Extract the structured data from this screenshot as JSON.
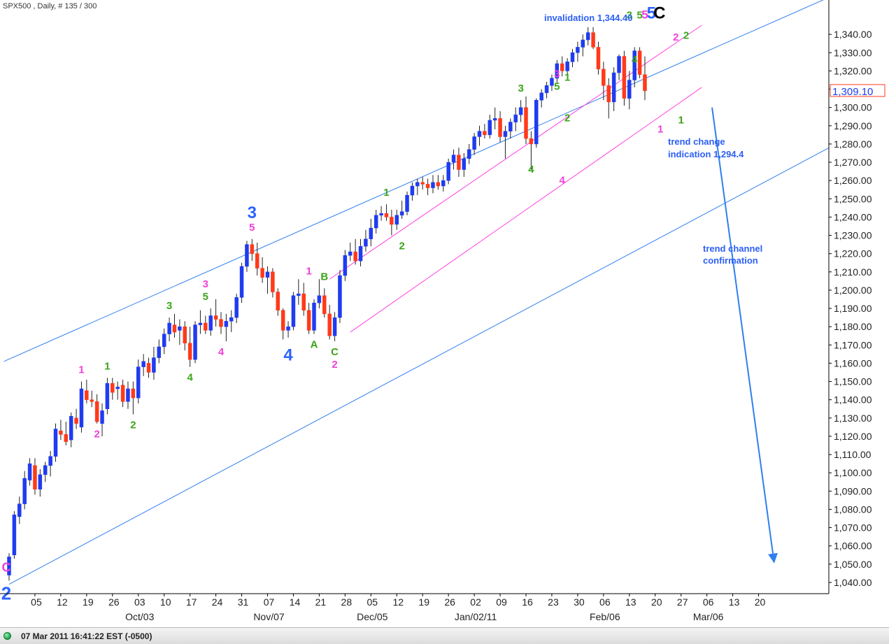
{
  "chart_header": "SPX500 , Daily, # 135 / 300",
  "status_bar": {
    "timestamp": "07 Mar 2011 16:41:22 EST (-0500)"
  },
  "colors": {
    "up": "#1f3cf0",
    "down": "#ff3a1a",
    "blue_line": "#2f7ff0",
    "pink_line": "#ff40e0",
    "green_label": "#3aa518",
    "pink_label": "#f040d8",
    "blue_label": "#2c63ff"
  },
  "chart_data": {
    "type": "candlestick",
    "symbol": "SPX500",
    "timeframe": "Daily",
    "ylim": [
      1035,
      1355
    ],
    "yticks": [
      1040,
      1050,
      1060,
      1070,
      1080,
      1090,
      1100,
      1110,
      1120,
      1130,
      1140,
      1150,
      1160,
      1170,
      1180,
      1190,
      1200,
      1210,
      1220,
      1230,
      1240,
      1250,
      1260,
      1270,
      1280,
      1290,
      1300,
      1310,
      1320,
      1330,
      1340
    ],
    "ytick_labels": [
      "1,040.00",
      "1,050.00",
      "1,060.00",
      "1,070.00",
      "1,080.00",
      "1,090.00",
      "1,100.00",
      "1,110.00",
      "1,120.00",
      "1,130.00",
      "1,140.00",
      "1,150.00",
      "1,160.00",
      "1,170.00",
      "1,180.00",
      "1,190.00",
      "1,200.00",
      "1,210.00",
      "1,220.00",
      "1,230.00",
      "1,240.00",
      "1,250.00",
      "1,260.00",
      "1,270.00",
      "1,280.00",
      "1,290.00",
      "1,300.00",
      "1,310.00",
      "1,320.00",
      "1,330.00",
      "1,340.00"
    ],
    "current_price_label": "1,309.10",
    "current_price": 1309.1,
    "x_day_ticks": [
      {
        "i": 5,
        "label": "05"
      },
      {
        "i": 10,
        "label": "12"
      },
      {
        "i": 15,
        "label": "19"
      },
      {
        "i": 20,
        "label": "26"
      },
      {
        "i": 25,
        "label": "03"
      },
      {
        "i": 30,
        "label": "10"
      },
      {
        "i": 35,
        "label": "17"
      },
      {
        "i": 40,
        "label": "24"
      },
      {
        "i": 45,
        "label": "31"
      },
      {
        "i": 50,
        "label": "07"
      },
      {
        "i": 55,
        "label": "14"
      },
      {
        "i": 60,
        "label": "21"
      },
      {
        "i": 65,
        "label": "28"
      },
      {
        "i": 70,
        "label": "05"
      },
      {
        "i": 75,
        "label": "12"
      },
      {
        "i": 80,
        "label": "19"
      },
      {
        "i": 85,
        "label": "26"
      },
      {
        "i": 90,
        "label": "02"
      },
      {
        "i": 95,
        "label": "09"
      },
      {
        "i": 100,
        "label": "16"
      },
      {
        "i": 105,
        "label": "23"
      },
      {
        "i": 110,
        "label": "30"
      },
      {
        "i": 115,
        "label": "06"
      },
      {
        "i": 120,
        "label": "13"
      },
      {
        "i": 125,
        "label": "20"
      },
      {
        "i": 130,
        "label": "27"
      },
      {
        "i": 135,
        "label": "06"
      },
      {
        "i": 140,
        "label": "13"
      },
      {
        "i": 145,
        "label": "20"
      }
    ],
    "x_month_ticks": [
      {
        "i": 25,
        "label": "Oct/03"
      },
      {
        "i": 50,
        "label": "Nov/07"
      },
      {
        "i": 70,
        "label": "Dec/05"
      },
      {
        "i": 90,
        "label": "Jan/02/11"
      },
      {
        "i": 115,
        "label": "Feb/06"
      },
      {
        "i": 135,
        "label": "Mar/06"
      }
    ],
    "ohlc": [
      [
        1044,
        1056,
        1041,
        1054
      ],
      [
        1055,
        1079,
        1053,
        1077
      ],
      [
        1076,
        1087,
        1072,
        1083
      ],
      [
        1083,
        1101,
        1080,
        1097
      ],
      [
        1096,
        1108,
        1093,
        1105
      ],
      [
        1104,
        1108,
        1088,
        1091
      ],
      [
        1091,
        1102,
        1087,
        1099
      ],
      [
        1099,
        1106,
        1095,
        1104
      ],
      [
        1104,
        1112,
        1098,
        1109
      ],
      [
        1109,
        1127,
        1106,
        1124
      ],
      [
        1123,
        1129,
        1118,
        1121
      ],
      [
        1121,
        1128,
        1115,
        1117
      ],
      [
        1118,
        1133,
        1114,
        1131
      ],
      [
        1130,
        1135,
        1124,
        1127
      ],
      [
        1125,
        1150,
        1122,
        1146
      ],
      [
        1145,
        1151,
        1138,
        1140
      ],
      [
        1140,
        1145,
        1136,
        1139
      ],
      [
        1139,
        1143,
        1127,
        1128
      ],
      [
        1127,
        1138,
        1120,
        1134
      ],
      [
        1135,
        1152,
        1132,
        1149
      ],
      [
        1149,
        1152,
        1140,
        1144
      ],
      [
        1146,
        1150,
        1140,
        1147
      ],
      [
        1148,
        1151,
        1136,
        1139
      ],
      [
        1139,
        1150,
        1135,
        1146
      ],
      [
        1146,
        1150,
        1132,
        1141
      ],
      [
        1141,
        1162,
        1138,
        1158
      ],
      [
        1158,
        1165,
        1153,
        1161
      ],
      [
        1160,
        1163,
        1152,
        1155
      ],
      [
        1155,
        1169,
        1151,
        1163
      ],
      [
        1163,
        1173,
        1160,
        1169
      ],
      [
        1169,
        1179,
        1165,
        1176
      ],
      [
        1176,
        1185,
        1172,
        1182
      ],
      [
        1181,
        1187,
        1174,
        1177
      ],
      [
        1178,
        1184,
        1170,
        1180
      ],
      [
        1180,
        1183,
        1167,
        1171
      ],
      [
        1171,
        1180,
        1158,
        1162
      ],
      [
        1162,
        1183,
        1160,
        1181
      ],
      [
        1181,
        1189,
        1176,
        1182
      ],
      [
        1182,
        1186,
        1176,
        1178
      ],
      [
        1178,
        1190,
        1175,
        1186
      ],
      [
        1186,
        1195,
        1180,
        1184
      ],
      [
        1184,
        1188,
        1176,
        1180
      ],
      [
        1180,
        1187,
        1172,
        1183
      ],
      [
        1183,
        1189,
        1177,
        1185
      ],
      [
        1185,
        1198,
        1182,
        1196
      ],
      [
        1196,
        1215,
        1193,
        1213
      ],
      [
        1213,
        1227,
        1210,
        1225
      ],
      [
        1225,
        1228,
        1216,
        1220
      ],
      [
        1220,
        1226,
        1208,
        1212
      ],
      [
        1212,
        1218,
        1204,
        1207
      ],
      [
        1207,
        1213,
        1198,
        1210
      ],
      [
        1210,
        1212,
        1196,
        1199
      ],
      [
        1199,
        1201,
        1186,
        1189
      ],
      [
        1189,
        1190,
        1173,
        1178
      ],
      [
        1178,
        1183,
        1174,
        1180
      ],
      [
        1180,
        1199,
        1178,
        1197
      ],
      [
        1197,
        1206,
        1192,
        1198
      ],
      [
        1198,
        1204,
        1186,
        1189
      ],
      [
        1189,
        1193,
        1176,
        1178
      ],
      [
        1178,
        1195,
        1176,
        1193
      ],
      [
        1193,
        1206,
        1190,
        1197
      ],
      [
        1197,
        1201,
        1185,
        1187
      ],
      [
        1187,
        1192,
        1173,
        1175
      ],
      [
        1175,
        1188,
        1172,
        1185
      ],
      [
        1185,
        1211,
        1182,
        1208
      ],
      [
        1208,
        1222,
        1205,
        1219
      ],
      [
        1219,
        1226,
        1216,
        1221
      ],
      [
        1221,
        1228,
        1214,
        1216
      ],
      [
        1216,
        1228,
        1213,
        1224
      ],
      [
        1224,
        1233,
        1221,
        1228
      ],
      [
        1228,
        1239,
        1224,
        1234
      ],
      [
        1234,
        1244,
        1231,
        1241
      ],
      [
        1241,
        1246,
        1238,
        1242
      ],
      [
        1242,
        1247,
        1238,
        1240
      ],
      [
        1240,
        1244,
        1230,
        1236
      ],
      [
        1236,
        1244,
        1233,
        1241
      ],
      [
        1241,
        1249,
        1239,
        1243
      ],
      [
        1243,
        1254,
        1241,
        1252
      ],
      [
        1252,
        1259,
        1249,
        1257
      ],
      [
        1257,
        1261,
        1252,
        1259
      ],
      [
        1259,
        1262,
        1255,
        1258
      ],
      [
        1258,
        1261,
        1252,
        1256
      ],
      [
        1256,
        1263,
        1253,
        1259
      ],
      [
        1259,
        1263,
        1255,
        1257
      ],
      [
        1257,
        1263,
        1254,
        1260
      ],
      [
        1260,
        1272,
        1258,
        1270
      ],
      [
        1270,
        1277,
        1266,
        1274
      ],
      [
        1274,
        1278,
        1262,
        1266
      ],
      [
        1266,
        1275,
        1262,
        1272
      ],
      [
        1272,
        1280,
        1269,
        1277
      ],
      [
        1277,
        1286,
        1274,
        1284
      ],
      [
        1284,
        1290,
        1279,
        1287
      ],
      [
        1287,
        1291,
        1283,
        1285
      ],
      [
        1285,
        1296,
        1283,
        1293
      ],
      [
        1293,
        1300,
        1288,
        1294
      ],
      [
        1294,
        1298,
        1281,
        1284
      ],
      [
        1284,
        1290,
        1272,
        1287
      ],
      [
        1287,
        1294,
        1283,
        1292
      ],
      [
        1292,
        1300,
        1287,
        1296
      ],
      [
        1296,
        1304,
        1292,
        1300
      ],
      [
        1300,
        1306,
        1280,
        1283
      ],
      [
        1283,
        1287,
        1266,
        1280
      ],
      [
        1280,
        1305,
        1278,
        1304
      ],
      [
        1304,
        1310,
        1300,
        1308
      ],
      [
        1308,
        1314,
        1305,
        1312
      ],
      [
        1312,
        1318,
        1309,
        1316
      ],
      [
        1316,
        1326,
        1313,
        1324
      ],
      [
        1324,
        1328,
        1317,
        1320
      ],
      [
        1320,
        1327,
        1316,
        1325
      ],
      [
        1325,
        1332,
        1322,
        1330
      ],
      [
        1330,
        1336,
        1325,
        1333
      ],
      [
        1333,
        1340,
        1328,
        1337
      ],
      [
        1337,
        1344,
        1334,
        1341
      ],
      [
        1341,
        1344,
        1332,
        1333
      ],
      [
        1333,
        1336,
        1318,
        1321
      ],
      [
        1321,
        1325,
        1304,
        1312
      ],
      [
        1312,
        1316,
        1294,
        1303
      ],
      [
        1303,
        1322,
        1298,
        1319
      ],
      [
        1319,
        1329,
        1315,
        1328
      ],
      [
        1328,
        1331,
        1301,
        1305
      ],
      [
        1305,
        1320,
        1299,
        1315
      ],
      [
        1315,
        1333,
        1311,
        1331
      ],
      [
        1331,
        1333,
        1316,
        1318
      ],
      [
        1318,
        1328,
        1304,
        1309.1
      ]
    ],
    "trend_lines": [
      {
        "name": "upper-channel",
        "color": "blue",
        "from": [
          -1,
          1161
        ],
        "to": [
          160,
          1362
        ]
      },
      {
        "name": "lower-channel",
        "color": "blue",
        "from": [
          0,
          1039
        ],
        "to": [
          160,
          1280
        ]
      },
      {
        "name": "pink-upper",
        "color": "pink",
        "from": [
          62,
          1206
        ],
        "to": [
          134,
          1345
        ]
      },
      {
        "name": "pink-lower",
        "color": "pink",
        "from": [
          66,
          1177
        ],
        "to": [
          134,
          1311
        ]
      }
    ],
    "projection_arrow": {
      "from": [
        136,
        1300
      ],
      "to": [
        148,
        1051
      ]
    },
    "wave_labels": [
      {
        "i": 0,
        "y": 1046,
        "text": "C",
        "color": "pink",
        "size": 18,
        "dy": 0,
        "dx": -4
      },
      {
        "i": 0,
        "y": 1042,
        "text": "2",
        "color": "blue",
        "size": 26,
        "dy": 30,
        "dx": -4
      },
      {
        "i": 14,
        "y": 1150,
        "text": "1",
        "color": "pink",
        "size": 15,
        "dy": -12
      },
      {
        "i": 17,
        "y": 1127,
        "text": "2",
        "color": "pink",
        "size": 15,
        "dy": 20
      },
      {
        "i": 19,
        "y": 1152,
        "text": "1",
        "color": "green",
        "size": 15,
        "dy": -12
      },
      {
        "i": 24,
        "y": 1132,
        "text": "2",
        "color": "green",
        "size": 15,
        "dy": 20
      },
      {
        "i": 31,
        "y": 1185,
        "text": "3",
        "color": "green",
        "size": 15,
        "dy": -12
      },
      {
        "i": 35,
        "y": 1158,
        "text": "4",
        "color": "green",
        "size": 15,
        "dy": 20
      },
      {
        "i": 38,
        "y": 1190,
        "text": "5",
        "color": "green",
        "size": 15,
        "dy": -12
      },
      {
        "i": 38,
        "y": 1190,
        "text": "3",
        "color": "pink",
        "size": 15,
        "dy": -30
      },
      {
        "i": 41,
        "y": 1172,
        "text": "4",
        "color": "pink",
        "size": 15,
        "dy": 20
      },
      {
        "i": 47,
        "y": 1228,
        "text": "5",
        "color": "pink",
        "size": 15,
        "dy": -12
      },
      {
        "i": 47,
        "y": 1228,
        "text": "3",
        "color": "blue",
        "size": 24,
        "dy": -30
      },
      {
        "i": 54,
        "y": 1173,
        "text": "4",
        "color": "blue",
        "size": 24,
        "dy": 30
      },
      {
        "i": 58,
        "y": 1204,
        "text": "1",
        "color": "pink",
        "size": 15,
        "dy": -12
      },
      {
        "i": 59,
        "y": 1176,
        "text": "A",
        "color": "green",
        "size": 15,
        "dy": 20
      },
      {
        "i": 61,
        "y": 1201,
        "text": "B",
        "color": "green",
        "size": 15,
        "dy": -12
      },
      {
        "i": 63,
        "y": 1172,
        "text": "C",
        "color": "green",
        "size": 15,
        "dy": 20
      },
      {
        "i": 63,
        "y": 1172,
        "text": "2",
        "color": "pink",
        "size": 15,
        "dy": 38
      },
      {
        "i": 73,
        "y": 1247,
        "text": "1",
        "color": "green",
        "size": 15,
        "dy": -12
      },
      {
        "i": 76,
        "y": 1230,
        "text": "2",
        "color": "green",
        "size": 15,
        "dy": 20
      },
      {
        "i": 99,
        "y": 1304,
        "text": "3",
        "color": "green",
        "size": 15,
        "dy": -12
      },
      {
        "i": 101,
        "y": 1272,
        "text": "4",
        "color": "green",
        "size": 15,
        "dy": 20
      },
      {
        "i": 106,
        "y": 1305,
        "text": "5",
        "color": "green",
        "size": 15,
        "dy": -12
      },
      {
        "i": 106,
        "y": 1305,
        "text": "3",
        "color": "pink",
        "size": 15,
        "dy": -30
      },
      {
        "i": 108,
        "y": 1300,
        "text": "2",
        "color": "green",
        "size": 15,
        "dy": 20
      },
      {
        "i": 107,
        "y": 1266,
        "text": "4",
        "color": "pink",
        "size": 15,
        "dy": 20
      },
      {
        "i": 108,
        "y": 1310,
        "text": "1",
        "color": "green",
        "size": 15,
        "dy": -12
      },
      {
        "i": 120,
        "y": 1344,
        "text": "3",
        "color": "green",
        "size": 15,
        "dy": -12
      },
      {
        "i": 121,
        "y": 1332,
        "text": "4",
        "color": "green",
        "size": 15,
        "dy": 20
      },
      {
        "i": 122,
        "y": 1344,
        "text": "5",
        "color": "green",
        "size": 15,
        "dy": -12
      },
      {
        "i": 123,
        "y": 1344,
        "text": "5",
        "color": "pink",
        "size": 17,
        "dy": -12
      },
      {
        "i": 124,
        "y": 1344,
        "text": "5",
        "color": "blue",
        "size": 24,
        "dy": -12,
        "dx": 2
      },
      {
        "i": 125,
        "y": 1344,
        "text": "C",
        "color": "black",
        "size": 24,
        "dy": -12,
        "dx": 6
      },
      {
        "i": 126,
        "y": 1294,
        "text": "1",
        "color": "pink",
        "size": 15,
        "dy": 20
      },
      {
        "i": 129,
        "y": 1332,
        "text": "2",
        "color": "pink",
        "size": 15,
        "dy": -12
      },
      {
        "i": 130,
        "y": 1299,
        "text": "1",
        "color": "green",
        "size": 15,
        "dy": 20
      },
      {
        "i": 131,
        "y": 1333,
        "text": "2",
        "color": "green",
        "size": 15,
        "dy": -12
      }
    ],
    "annotations": {
      "invalidation": "invalidation 1,344.40",
      "trend_change_line1": "trend change",
      "trend_change_line2": "indication 1,294.4",
      "trend_channel_line1": "trend channel",
      "trend_channel_line2": "confirmation"
    }
  }
}
